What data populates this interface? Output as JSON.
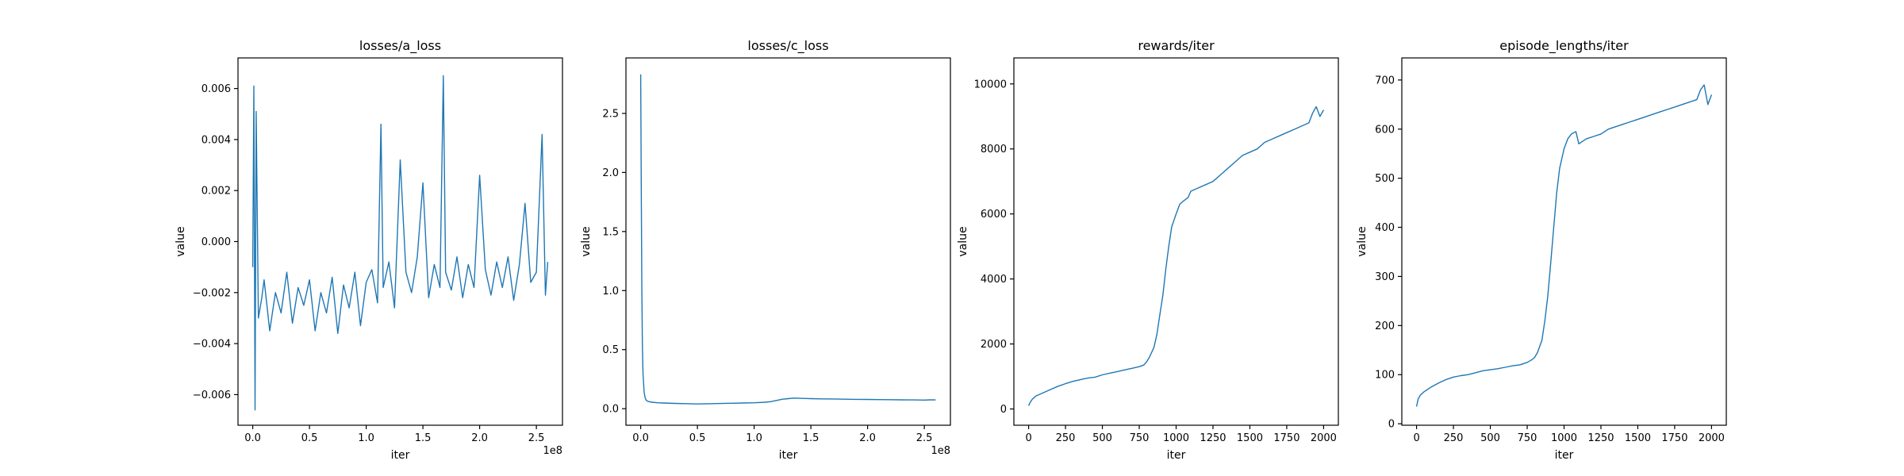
{
  "line_color": "#1f77b4",
  "chart_data": [
    {
      "type": "line",
      "title": "losses/a_loss",
      "xlabel": "iter",
      "ylabel": "value",
      "x_offset_text": "1e8",
      "xlim": [
        -0.13,
        2.73
      ],
      "ylim": [
        -0.0072,
        0.0072
      ],
      "xticks": [
        0.0,
        0.5,
        1.0,
        1.5,
        2.0,
        2.5
      ],
      "xtick_labels": [
        "0.0",
        "0.5",
        "1.0",
        "1.5",
        "2.0",
        "2.5"
      ],
      "yticks": [
        -0.006,
        -0.004,
        -0.002,
        0.0,
        0.002,
        0.004,
        0.006
      ],
      "ytick_labels": [
        "−0.006",
        "−0.004",
        "−0.002",
        "0.000",
        "0.002",
        "0.004",
        "0.006"
      ],
      "x": [
        0.0,
        0.01,
        0.02,
        0.03,
        0.05,
        0.08,
        0.1,
        0.15,
        0.2,
        0.25,
        0.3,
        0.35,
        0.4,
        0.45,
        0.5,
        0.55,
        0.6,
        0.65,
        0.7,
        0.75,
        0.8,
        0.85,
        0.9,
        0.95,
        1.0,
        1.05,
        1.1,
        1.13,
        1.15,
        1.2,
        1.25,
        1.3,
        1.35,
        1.4,
        1.45,
        1.5,
        1.55,
        1.6,
        1.65,
        1.68,
        1.7,
        1.75,
        1.8,
        1.85,
        1.9,
        1.95,
        2.0,
        2.05,
        2.1,
        2.15,
        2.2,
        2.25,
        2.3,
        2.35,
        2.4,
        2.45,
        2.5,
        2.55,
        2.58,
        2.6
      ],
      "y": [
        -0.001,
        0.0061,
        -0.0066,
        0.0051,
        -0.003,
        -0.0022,
        -0.0015,
        -0.0035,
        -0.002,
        -0.0028,
        -0.0012,
        -0.0032,
        -0.0018,
        -0.0025,
        -0.0015,
        -0.0035,
        -0.002,
        -0.0028,
        -0.0014,
        -0.0036,
        -0.0017,
        -0.0026,
        -0.0012,
        -0.0033,
        -0.0016,
        -0.0011,
        -0.0024,
        0.0046,
        -0.0018,
        -0.0008,
        -0.0026,
        0.0032,
        -0.0012,
        -0.002,
        -0.0006,
        0.0023,
        -0.0022,
        -0.0009,
        -0.0018,
        0.0065,
        -0.0012,
        -0.0019,
        -0.0006,
        -0.0022,
        -0.0009,
        -0.0018,
        0.0026,
        -0.0011,
        -0.0021,
        -0.0008,
        -0.0018,
        -0.0006,
        -0.0023,
        -0.0009,
        0.0015,
        -0.0016,
        -0.0012,
        0.0042,
        -0.0021,
        -0.0008
      ]
    },
    {
      "type": "line",
      "title": "losses/c_loss",
      "xlabel": "iter",
      "ylabel": "value",
      "x_offset_text": "1e8",
      "xlim": [
        -0.13,
        2.73
      ],
      "ylim": [
        -0.14,
        2.97
      ],
      "xticks": [
        0.0,
        0.5,
        1.0,
        1.5,
        2.0,
        2.5
      ],
      "xtick_labels": [
        "0.0",
        "0.5",
        "1.0",
        "1.5",
        "2.0",
        "2.5"
      ],
      "yticks": [
        0.0,
        0.5,
        1.0,
        1.5,
        2.0,
        2.5
      ],
      "ytick_labels": [
        "0.0",
        "0.5",
        "1.0",
        "1.5",
        "2.0",
        "2.5"
      ],
      "x": [
        0.0,
        0.005,
        0.01,
        0.015,
        0.02,
        0.03,
        0.04,
        0.05,
        0.07,
        0.1,
        0.15,
        0.2,
        0.3,
        0.4,
        0.5,
        0.6,
        0.7,
        0.8,
        0.9,
        1.0,
        1.1,
        1.15,
        1.2,
        1.25,
        1.3,
        1.35,
        1.4,
        1.5,
        1.6,
        1.7,
        1.8,
        1.9,
        2.0,
        2.1,
        2.2,
        2.3,
        2.4,
        2.5,
        2.55,
        2.6
      ],
      "y": [
        2.83,
        1.9,
        1.05,
        0.55,
        0.3,
        0.14,
        0.09,
        0.07,
        0.06,
        0.055,
        0.05,
        0.048,
        0.045,
        0.043,
        0.04,
        0.042,
        0.044,
        0.046,
        0.048,
        0.05,
        0.055,
        0.06,
        0.07,
        0.08,
        0.085,
        0.09,
        0.088,
        0.085,
        0.083,
        0.082,
        0.08,
        0.079,
        0.078,
        0.077,
        0.076,
        0.075,
        0.074,
        0.073,
        0.075,
        0.074
      ]
    },
    {
      "type": "line",
      "title": "rewards/iter",
      "xlabel": "iter",
      "ylabel": "value",
      "x_offset_text": "",
      "xlim": [
        -100,
        2100
      ],
      "ylim": [
        -500,
        10800
      ],
      "xticks": [
        0,
        250,
        500,
        750,
        1000,
        1250,
        1500,
        1750,
        2000
      ],
      "xtick_labels": [
        "0",
        "250",
        "500",
        "750",
        "1000",
        "1250",
        "1500",
        "1750",
        "2000"
      ],
      "yticks": [
        0,
        2000,
        4000,
        6000,
        8000,
        10000
      ],
      "ytick_labels": [
        "0",
        "2000",
        "4000",
        "6000",
        "8000",
        "10000"
      ],
      "x": [
        0,
        10,
        25,
        50,
        100,
        150,
        200,
        250,
        300,
        350,
        400,
        450,
        500,
        550,
        600,
        650,
        700,
        750,
        780,
        800,
        820,
        850,
        870,
        890,
        910,
        930,
        950,
        970,
        1000,
        1025,
        1050,
        1080,
        1100,
        1150,
        1200,
        1250,
        1300,
        1350,
        1400,
        1450,
        1500,
        1550,
        1600,
        1650,
        1700,
        1750,
        1800,
        1850,
        1900,
        1925,
        1950,
        1975,
        2000
      ],
      "y": [
        100,
        200,
        300,
        400,
        500,
        600,
        700,
        780,
        850,
        900,
        950,
        980,
        1050,
        1100,
        1150,
        1200,
        1250,
        1300,
        1350,
        1450,
        1600,
        1900,
        2300,
        2900,
        3500,
        4300,
        5000,
        5600,
        6000,
        6300,
        6400,
        6500,
        6700,
        6800,
        6900,
        7000,
        7200,
        7400,
        7600,
        7800,
        7900,
        8000,
        8200,
        8300,
        8400,
        8500,
        8600,
        8700,
        8800,
        9100,
        9300,
        9000,
        9200
      ]
    },
    {
      "type": "line",
      "title": "episode_lengths/iter",
      "xlabel": "iter",
      "ylabel": "value",
      "x_offset_text": "",
      "xlim": [
        -100,
        2100
      ],
      "ylim": [
        -3,
        745
      ],
      "xticks": [
        0,
        250,
        500,
        750,
        1000,
        1250,
        1500,
        1750,
        2000
      ],
      "xtick_labels": [
        "0",
        "250",
        "500",
        "750",
        "1000",
        "1250",
        "1500",
        "1750",
        "2000"
      ],
      "yticks": [
        0,
        100,
        200,
        300,
        400,
        500,
        600,
        700
      ],
      "ytick_labels": [
        "0",
        "100",
        "200",
        "300",
        "400",
        "500",
        "600",
        "700"
      ],
      "x": [
        0,
        10,
        25,
        50,
        100,
        150,
        200,
        250,
        300,
        350,
        400,
        450,
        500,
        550,
        600,
        650,
        700,
        750,
        780,
        800,
        820,
        850,
        870,
        890,
        910,
        930,
        950,
        970,
        1000,
        1025,
        1050,
        1080,
        1100,
        1150,
        1200,
        1250,
        1300,
        1350,
        1400,
        1450,
        1500,
        1550,
        1600,
        1650,
        1700,
        1750,
        1800,
        1850,
        1900,
        1925,
        1950,
        1975,
        2000
      ],
      "y": [
        35,
        50,
        58,
        65,
        75,
        83,
        90,
        95,
        98,
        100,
        104,
        108,
        110,
        112,
        115,
        118,
        120,
        125,
        130,
        135,
        145,
        170,
        210,
        260,
        330,
        400,
        470,
        520,
        560,
        580,
        590,
        595,
        570,
        580,
        585,
        590,
        600,
        605,
        610,
        615,
        620,
        625,
        630,
        635,
        640,
        645,
        650,
        655,
        660,
        680,
        690,
        650,
        670
      ]
    }
  ]
}
